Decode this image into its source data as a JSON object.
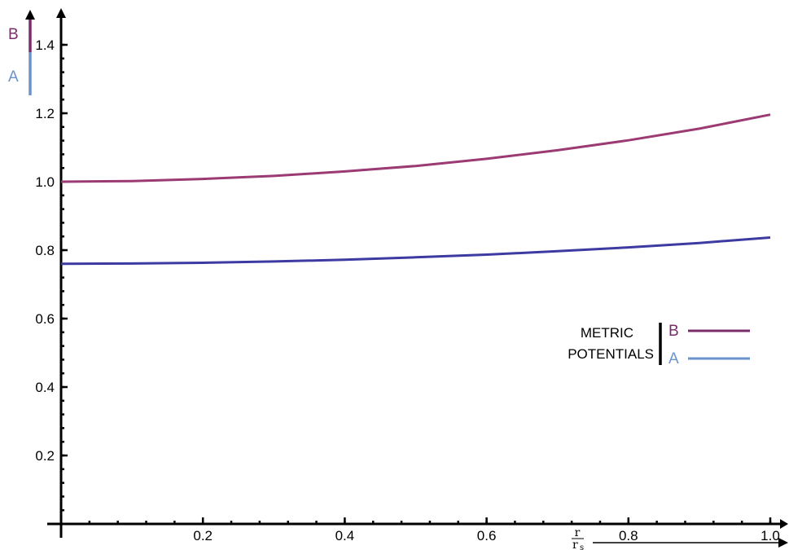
{
  "chart_data": {
    "type": "line",
    "title": "",
    "xlabel": {
      "numerator": "r",
      "denominator": "r",
      "denominator_subscript": "s"
    },
    "ylabel": "",
    "xlim": [
      0,
      1.0
    ],
    "ylim": [
      0,
      1.5
    ],
    "x_ticks": [
      0.2,
      0.4,
      0.6,
      0.8,
      1.0
    ],
    "x_tick_labels": [
      "0.2",
      "0.4",
      "0.6",
      "0.8",
      "1.0"
    ],
    "y_ticks": [
      0.2,
      0.4,
      0.6,
      0.8,
      1.0,
      1.2,
      1.4
    ],
    "y_tick_labels": [
      "0.2",
      "0.4",
      "0.6",
      "0.8",
      "1.0",
      "1.2",
      "1.4"
    ],
    "grid": false,
    "series": [
      {
        "name": "B",
        "color": "#9b3a73",
        "x": [
          0.0,
          0.1,
          0.2,
          0.3,
          0.4,
          0.5,
          0.6,
          0.7,
          0.8,
          0.9,
          1.0
        ],
        "y": [
          1.0,
          1.002,
          1.008,
          1.017,
          1.03,
          1.046,
          1.067,
          1.092,
          1.121,
          1.155,
          1.196
        ]
      },
      {
        "name": "A",
        "color": "#3d3aa2",
        "x": [
          0.0,
          0.1,
          0.2,
          0.3,
          0.4,
          0.5,
          0.6,
          0.7,
          0.8,
          0.9,
          1.0
        ],
        "y": [
          0.76,
          0.761,
          0.763,
          0.767,
          0.772,
          0.779,
          0.787,
          0.797,
          0.808,
          0.821,
          0.837
        ]
      }
    ],
    "legend": {
      "placement": "right",
      "title_lines": [
        "METRIC",
        "POTENTIALS"
      ],
      "entries": [
        {
          "label": "B",
          "text_color": "#7a2c6a",
          "line_color": "#7a2c6a"
        },
        {
          "label": "A",
          "text_color": "#6a93cc",
          "line_color": "#6a93cc"
        }
      ]
    },
    "y_axis_markers": [
      {
        "label": "B",
        "color": "#7a2c6a"
      },
      {
        "label": "A",
        "color": "#6a93cc"
      }
    ]
  }
}
